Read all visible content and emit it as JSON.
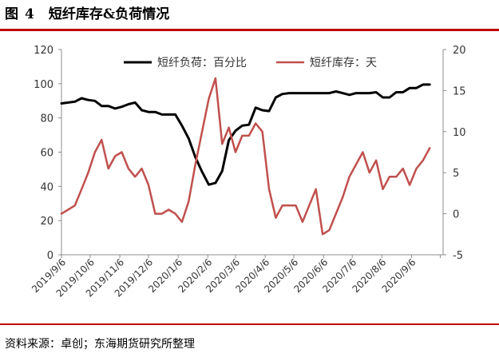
{
  "figure": {
    "label": "图",
    "number": "4",
    "title": "短纤库存&负荷情况",
    "source": "资料来源：卓创；东海期货研究所整理"
  },
  "colors": {
    "accent_rule": "#c00000",
    "load_series": "#000000",
    "inventory_series": "#c0504d"
  },
  "chart_data": {
    "type": "line",
    "title": "短纤库存&负荷情况",
    "xlabel": "",
    "ylabel": "",
    "y_left_lim": [
      0,
      120
    ],
    "y_left_ticks": [
      0,
      20,
      40,
      60,
      80,
      100,
      120
    ],
    "y_right_lim": [
      -5,
      20
    ],
    "y_right_ticks": [
      -5,
      0,
      5,
      10,
      15,
      20
    ],
    "x_ticks": [
      "2019/9/6",
      "2019/10/6",
      "2019/11/6",
      "2019/12/6",
      "2020/1/6",
      "2020/2/6",
      "2020/3/6",
      "2020/4/6",
      "2020/5/6",
      "2020/6/6",
      "2020/7/6",
      "2020/8/6",
      "2020/9/6"
    ],
    "x_range": [
      "2019-09-01",
      "2020-10-04"
    ],
    "grid": false,
    "legend_position": "top-center",
    "series": [
      {
        "name": "短纤负荷：百分比",
        "axis": "left",
        "color": "#000000",
        "points": [
          [
            "2019-09-01",
            88.5
          ],
          [
            "2019-09-08",
            89
          ],
          [
            "2019-09-15",
            89.5
          ],
          [
            "2019-09-22",
            91.5
          ],
          [
            "2019-09-29",
            90.5
          ],
          [
            "2019-10-06",
            90
          ],
          [
            "2019-10-13",
            87
          ],
          [
            "2019-10-20",
            87
          ],
          [
            "2019-10-27",
            85.5
          ],
          [
            "2019-11-03",
            86.5
          ],
          [
            "2019-11-10",
            88
          ],
          [
            "2019-11-17",
            89
          ],
          [
            "2019-11-24",
            84.5
          ],
          [
            "2019-12-01",
            83.5
          ],
          [
            "2019-12-08",
            83.5
          ],
          [
            "2019-12-15",
            82
          ],
          [
            "2019-12-22",
            82
          ],
          [
            "2019-12-29",
            82
          ],
          [
            "2020-01-05",
            75.5
          ],
          [
            "2020-01-12",
            68
          ],
          [
            "2020-01-19",
            57
          ],
          [
            "2020-01-26",
            48.5
          ],
          [
            "2020-02-02",
            41
          ],
          [
            "2020-02-09",
            42
          ],
          [
            "2020-02-16",
            49
          ],
          [
            "2020-02-23",
            67
          ],
          [
            "2020-03-01",
            72.5
          ],
          [
            "2020-03-08",
            75.5
          ],
          [
            "2020-03-15",
            76
          ],
          [
            "2020-03-22",
            86
          ],
          [
            "2020-03-29",
            84.5
          ],
          [
            "2020-04-05",
            84
          ],
          [
            "2020-04-12",
            92
          ],
          [
            "2020-04-19",
            94
          ],
          [
            "2020-04-26",
            94.5
          ],
          [
            "2020-05-03",
            94.5
          ],
          [
            "2020-05-10",
            94.5
          ],
          [
            "2020-05-17",
            94.5
          ],
          [
            "2020-05-24",
            94.5
          ],
          [
            "2020-05-31",
            94.5
          ],
          [
            "2020-06-07",
            94.5
          ],
          [
            "2020-06-14",
            95.5
          ],
          [
            "2020-06-21",
            94.5
          ],
          [
            "2020-06-28",
            93.5
          ],
          [
            "2020-07-05",
            94.5
          ],
          [
            "2020-07-12",
            94.5
          ],
          [
            "2020-07-19",
            94.5
          ],
          [
            "2020-07-26",
            95
          ],
          [
            "2020-08-02",
            92
          ],
          [
            "2020-08-09",
            92
          ],
          [
            "2020-08-16",
            95
          ],
          [
            "2020-08-23",
            95
          ],
          [
            "2020-08-30",
            97.5
          ],
          [
            "2020-09-06",
            97.5
          ],
          [
            "2020-09-13",
            99.5
          ],
          [
            "2020-09-20",
            99.5
          ]
        ]
      },
      {
        "name": "短纤库存：天",
        "axis": "right",
        "color": "#c0504d",
        "points": [
          [
            "2019-09-01",
            0
          ],
          [
            "2019-09-08",
            0.5
          ],
          [
            "2019-09-15",
            1
          ],
          [
            "2019-09-22",
            3
          ],
          [
            "2019-09-29",
            5
          ],
          [
            "2019-10-06",
            7.5
          ],
          [
            "2019-10-13",
            9
          ],
          [
            "2019-10-20",
            5.5
          ],
          [
            "2019-10-27",
            7
          ],
          [
            "2019-11-03",
            7.5
          ],
          [
            "2019-11-10",
            5.5
          ],
          [
            "2019-11-17",
            4.5
          ],
          [
            "2019-11-24",
            5.5
          ],
          [
            "2019-12-01",
            3.5
          ],
          [
            "2019-12-08",
            0
          ],
          [
            "2019-12-15",
            0
          ],
          [
            "2019-12-22",
            0.5
          ],
          [
            "2019-12-29",
            0
          ],
          [
            "2020-01-05",
            -1
          ],
          [
            "2020-01-12",
            1.5
          ],
          [
            "2020-01-19",
            6
          ],
          [
            "2020-01-26",
            10
          ],
          [
            "2020-02-02",
            14
          ],
          [
            "2020-02-09",
            16.5
          ],
          [
            "2020-02-16",
            8.5
          ],
          [
            "2020-02-23",
            10.5
          ],
          [
            "2020-03-01",
            7.5
          ],
          [
            "2020-03-08",
            9.5
          ],
          [
            "2020-03-15",
            9.5
          ],
          [
            "2020-03-22",
            11
          ],
          [
            "2020-03-29",
            10
          ],
          [
            "2020-04-05",
            3
          ],
          [
            "2020-04-12",
            -0.5
          ],
          [
            "2020-04-19",
            1
          ],
          [
            "2020-04-26",
            1
          ],
          [
            "2020-05-03",
            1
          ],
          [
            "2020-05-10",
            -1
          ],
          [
            "2020-05-17",
            1
          ],
          [
            "2020-05-24",
            3
          ],
          [
            "2020-05-31",
            -2.5
          ],
          [
            "2020-06-07",
            -2
          ],
          [
            "2020-06-14",
            0
          ],
          [
            "2020-06-21",
            2
          ],
          [
            "2020-06-28",
            4.5
          ],
          [
            "2020-07-05",
            6
          ],
          [
            "2020-07-12",
            7.5
          ],
          [
            "2020-07-19",
            5
          ],
          [
            "2020-07-26",
            6.5
          ],
          [
            "2020-08-02",
            3
          ],
          [
            "2020-08-09",
            4.5
          ],
          [
            "2020-08-16",
            4.5
          ],
          [
            "2020-08-23",
            5.5
          ],
          [
            "2020-08-30",
            3.5
          ],
          [
            "2020-09-06",
            5.5
          ],
          [
            "2020-09-13",
            6.5
          ],
          [
            "2020-09-20",
            8
          ]
        ]
      }
    ]
  }
}
